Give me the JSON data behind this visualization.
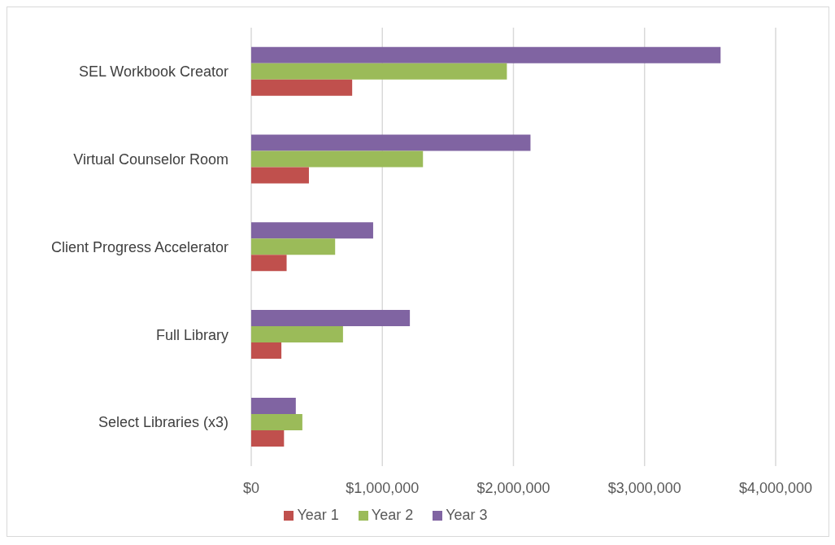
{
  "chart_data": {
    "type": "bar",
    "orientation": "horizontal",
    "categories": [
      "SEL Workbook Creator",
      "Virtual Counselor Room",
      "Client Progress Accelerator",
      "Full Library",
      "Select Libraries (x3)"
    ],
    "series": [
      {
        "name": "Year 3",
        "color": "#8064a2",
        "values": [
          3580000,
          2130000,
          930000,
          1210000,
          340000
        ]
      },
      {
        "name": "Year 2",
        "color": "#9bbb59",
        "values": [
          1950000,
          1310000,
          640000,
          700000,
          390000
        ]
      },
      {
        "name": "Year 1",
        "color": "#c0504d",
        "values": [
          770000,
          440000,
          270000,
          230000,
          250000
        ]
      }
    ],
    "xlim": [
      0,
      4000000
    ],
    "xticks": [
      {
        "value": 0,
        "label": "$0"
      },
      {
        "value": 1000000,
        "label": "$1,000,000"
      },
      {
        "value": 2000000,
        "label": "$2,000,000"
      },
      {
        "value": 3000000,
        "label": "$3,000,000"
      },
      {
        "value": 4000000,
        "label": "$4,000,000"
      }
    ],
    "grid": "x",
    "legend": "bottom"
  }
}
